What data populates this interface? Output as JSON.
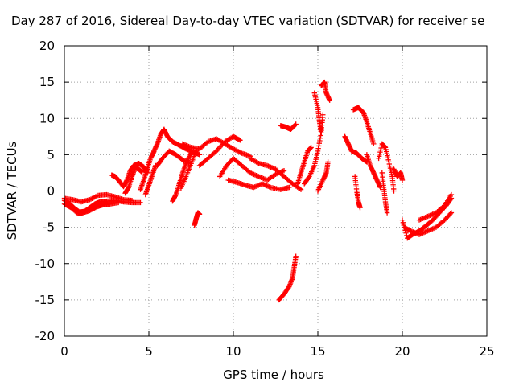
{
  "chart_data": {
    "type": "scatter",
    "title": "Day 287 of 2016, Sidereal Day-to-day VTEC variation (SDTVAR) for receiver se",
    "xlabel": "GPS time / hours",
    "ylabel": "SDTVAR / TECUs",
    "xlim": [
      0,
      25
    ],
    "ylim": [
      -20,
      20
    ],
    "xticks": [
      "0",
      "5",
      "10",
      "15",
      "20",
      "25"
    ],
    "yticks": [
      "20",
      "15",
      "10",
      "5",
      "0",
      "-5",
      "-10",
      "-15",
      "-20"
    ],
    "grid": true,
    "marker": "+",
    "color": "#ff0000",
    "series": [
      {
        "segments": [
          [
            [
              0.0,
              -1.3
            ],
            [
              0.3,
              -1.7
            ],
            [
              0.6,
              -2.4
            ],
            [
              0.9,
              -2.9
            ],
            [
              1.2,
              -2.8
            ],
            [
              1.5,
              -2.3
            ],
            [
              1.8,
              -1.8
            ],
            [
              2.1,
              -1.5
            ],
            [
              2.5,
              -1.4
            ],
            [
              3.0,
              -1.3
            ],
            [
              3.5,
              -1.5
            ],
            [
              4.0,
              -1.6
            ],
            [
              4.5,
              -1.6
            ]
          ],
          [
            [
              0.0,
              -1.8
            ],
            [
              0.4,
              -2.3
            ],
            [
              0.8,
              -3.1
            ],
            [
              1.1,
              -3.0
            ],
            [
              1.5,
              -2.7
            ],
            [
              1.9,
              -2.2
            ],
            [
              2.3,
              -1.9
            ],
            [
              2.7,
              -1.8
            ],
            [
              3.2,
              -1.6
            ]
          ],
          [
            [
              0.0,
              -1.0
            ],
            [
              0.5,
              -1.2
            ],
            [
              1.0,
              -1.5
            ],
            [
              1.5,
              -1.2
            ],
            [
              2.0,
              -0.6
            ],
            [
              2.5,
              -0.5
            ],
            [
              3.0,
              -0.8
            ],
            [
              3.5,
              -1.2
            ],
            [
              4.0,
              -1.3
            ]
          ],
          [
            [
              2.8,
              2.2
            ],
            [
              3.0,
              2.0
            ],
            [
              3.2,
              1.5
            ],
            [
              3.5,
              0.6
            ],
            [
              3.7,
              1.5
            ],
            [
              3.9,
              2.8
            ],
            [
              4.1,
              3.5
            ],
            [
              4.4,
              3.8
            ],
            [
              4.7,
              3.3
            ],
            [
              4.9,
              2.5
            ]
          ],
          [
            [
              3.6,
              -0.3
            ],
            [
              3.8,
              0.5
            ],
            [
              4.0,
              2.0
            ],
            [
              4.2,
              3.2
            ],
            [
              4.4,
              3.0
            ],
            [
              4.6,
              2.6
            ]
          ],
          [
            [
              4.5,
              0.2
            ],
            [
              4.7,
              1.5
            ],
            [
              4.9,
              3.0
            ],
            [
              5.1,
              4.5
            ],
            [
              5.3,
              5.4
            ]
          ],
          [
            [
              4.8,
              -0.5
            ],
            [
              5.0,
              0.8
            ],
            [
              5.2,
              2.2
            ],
            [
              5.4,
              3.5
            ]
          ],
          [
            [
              5.3,
              5.5
            ],
            [
              5.5,
              6.5
            ],
            [
              5.7,
              7.8
            ],
            [
              5.9,
              8.5
            ],
            [
              6.1,
              7.5
            ],
            [
              6.4,
              6.8
            ],
            [
              6.8,
              6.3
            ],
            [
              7.2,
              5.8
            ],
            [
              7.6,
              5.4
            ],
            [
              8.0,
              5.0
            ]
          ],
          [
            [
              5.5,
              3.5
            ],
            [
              5.8,
              4.5
            ],
            [
              6.2,
              5.5
            ],
            [
              6.6,
              5.0
            ],
            [
              7.0,
              4.3
            ],
            [
              7.5,
              3.8
            ]
          ],
          [
            [
              6.4,
              -1.4
            ],
            [
              6.6,
              -0.5
            ],
            [
              6.8,
              1.0
            ],
            [
              7.0,
              2.5
            ],
            [
              7.2,
              3.8
            ],
            [
              7.5,
              5.2
            ]
          ],
          [
            [
              6.9,
              0.4
            ],
            [
              7.2,
              2.0
            ],
            [
              7.5,
              3.8
            ],
            [
              7.8,
              5.5
            ]
          ],
          [
            [
              7.0,
              6.5
            ],
            [
              7.5,
              6.0
            ],
            [
              8.0,
              5.8
            ],
            [
              8.5,
              6.8
            ],
            [
              9.0,
              7.2
            ],
            [
              9.5,
              6.5
            ],
            [
              10.0,
              5.8
            ],
            [
              10.5,
              5.2
            ],
            [
              11.0,
              4.8
            ]
          ],
          [
            [
              8.0,
              3.5
            ],
            [
              8.5,
              4.5
            ],
            [
              9.0,
              5.5
            ],
            [
              9.5,
              6.8
            ],
            [
              10.0,
              7.5
            ],
            [
              10.4,
              7.0
            ]
          ],
          [
            [
              9.2,
              2.0
            ],
            [
              9.6,
              3.5
            ],
            [
              10.0,
              4.5
            ],
            [
              10.5,
              3.5
            ],
            [
              11.0,
              2.5
            ],
            [
              11.5,
              2.0
            ],
            [
              12.0,
              1.5
            ],
            [
              12.5,
              2.3
            ],
            [
              13.0,
              2.8
            ]
          ],
          [
            [
              9.7,
              1.5
            ],
            [
              10.2,
              1.2
            ],
            [
              10.7,
              0.8
            ],
            [
              11.2,
              0.5
            ],
            [
              11.7,
              1.0
            ],
            [
              12.2,
              0.5
            ],
            [
              12.8,
              0.2
            ],
            [
              13.3,
              0.5
            ]
          ],
          [
            [
              11.0,
              4.5
            ],
            [
              11.5,
              3.8
            ],
            [
              12.0,
              3.5
            ],
            [
              12.5,
              3.0
            ],
            [
              13.0,
              2.0
            ],
            [
              13.5,
              1.0
            ],
            [
              14.0,
              0.2
            ]
          ],
          [
            [
              7.7,
              -4.7
            ],
            [
              7.8,
              -3.8
            ],
            [
              7.9,
              -3.0
            ],
            [
              8.0,
              -3.2
            ]
          ],
          [
            [
              12.7,
              -15.0
            ],
            [
              13.0,
              -14.2
            ],
            [
              13.3,
              -13.2
            ],
            [
              13.5,
              -12.0
            ],
            [
              13.6,
              -10.5
            ],
            [
              13.7,
              -9.0
            ]
          ],
          [
            [
              12.8,
              9.0
            ],
            [
              13.1,
              8.8
            ],
            [
              13.4,
              8.5
            ],
            [
              13.7,
              9.2
            ]
          ],
          [
            [
              13.8,
              1.0
            ],
            [
              14.0,
              2.5
            ],
            [
              14.2,
              4.0
            ],
            [
              14.4,
              5.5
            ],
            [
              14.6,
              6.0
            ]
          ],
          [
            [
              14.2,
              1.0
            ],
            [
              14.5,
              2.0
            ],
            [
              14.8,
              3.5
            ],
            [
              15.0,
              5.5
            ],
            [
              15.2,
              8.0
            ],
            [
              15.3,
              10.5
            ]
          ],
          [
            [
              14.8,
              13.5
            ],
            [
              15.0,
              11.5
            ],
            [
              15.1,
              9.5
            ],
            [
              15.2,
              8.0
            ]
          ],
          [
            [
              15.2,
              14.5
            ],
            [
              15.4,
              15.0
            ],
            [
              15.5,
              13.5
            ],
            [
              15.7,
              12.5
            ]
          ],
          [
            [
              15.0,
              0.0
            ],
            [
              15.3,
              1.5
            ],
            [
              15.5,
              2.5
            ],
            [
              15.6,
              4.0
            ]
          ],
          [
            [
              16.6,
              7.5
            ],
            [
              16.8,
              6.5
            ],
            [
              17.0,
              5.5
            ],
            [
              17.3,
              5.2
            ],
            [
              17.6,
              4.5
            ],
            [
              17.9,
              4.0
            ]
          ],
          [
            [
              17.1,
              11.2
            ],
            [
              17.4,
              11.5
            ],
            [
              17.7,
              10.8
            ],
            [
              17.9,
              9.5
            ],
            [
              18.1,
              8.0
            ],
            [
              18.3,
              6.5
            ]
          ],
          [
            [
              17.2,
              2.0
            ],
            [
              17.3,
              0.0
            ],
            [
              17.4,
              -1.5
            ],
            [
              17.5,
              -2.3
            ]
          ],
          [
            [
              17.9,
              5.0
            ],
            [
              18.1,
              3.5
            ],
            [
              18.3,
              2.5
            ],
            [
              18.5,
              1.5
            ],
            [
              18.7,
              0.5
            ]
          ],
          [
            [
              18.6,
              4.5
            ],
            [
              18.8,
              6.5
            ],
            [
              19.0,
              6.0
            ],
            [
              19.2,
              4.0
            ],
            [
              19.4,
              2.0
            ],
            [
              19.5,
              0.0
            ]
          ],
          [
            [
              18.8,
              2.5
            ],
            [
              18.9,
              0.5
            ],
            [
              19.0,
              -1.5
            ],
            [
              19.1,
              -3.0
            ]
          ],
          [
            [
              19.5,
              3.0
            ],
            [
              19.7,
              2.0
            ],
            [
              19.9,
              2.5
            ],
            [
              20.0,
              1.5
            ]
          ],
          [
            [
              20.0,
              -4.0
            ],
            [
              20.3,
              -6.5
            ],
            [
              20.6,
              -6.0
            ],
            [
              21.0,
              -5.5
            ],
            [
              21.4,
              -4.8
            ],
            [
              21.8,
              -4.0
            ],
            [
              22.2,
              -3.0
            ],
            [
              22.6,
              -2.0
            ],
            [
              22.9,
              -1.0
            ]
          ],
          [
            [
              20.1,
              -5.0
            ],
            [
              20.5,
              -5.5
            ],
            [
              21.0,
              -6.0
            ],
            [
              21.5,
              -5.5
            ],
            [
              22.0,
              -5.0
            ],
            [
              22.5,
              -4.0
            ],
            [
              22.9,
              -3.0
            ]
          ],
          [
            [
              21.0,
              -4.0
            ],
            [
              21.5,
              -3.5
            ],
            [
              22.0,
              -3.0
            ],
            [
              22.5,
              -2.0
            ],
            [
              22.9,
              -0.5
            ]
          ]
        ]
      }
    ]
  }
}
